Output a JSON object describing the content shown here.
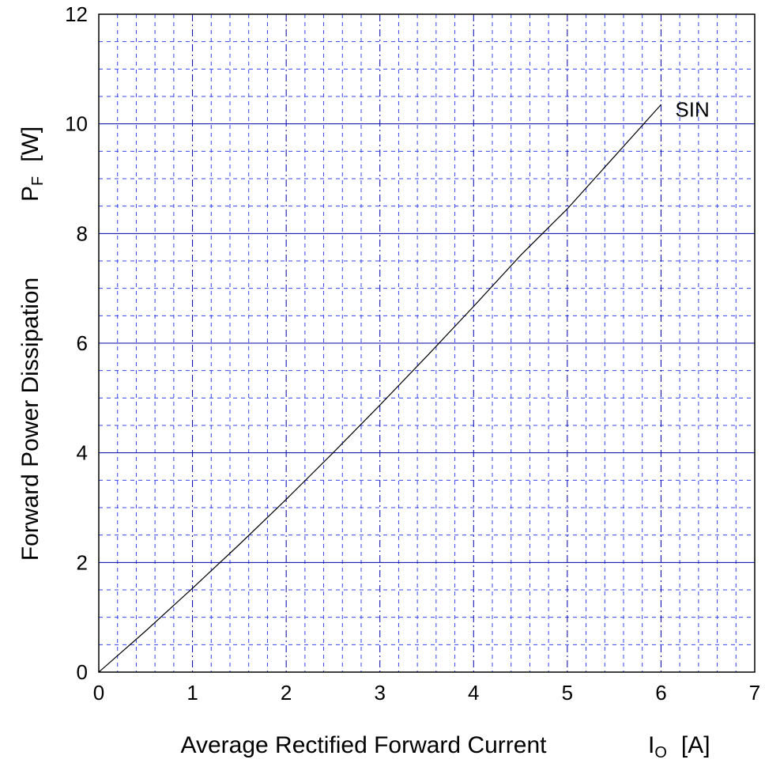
{
  "chart_data": {
    "type": "line",
    "title": "",
    "xlabel": "Average Rectified Forward Current",
    "xunit_symbol": "I",
    "xunit_sub": "O",
    "xunit": "[A]",
    "ylabel": "Forward Power Dissipation",
    "yunit_symbol": "P",
    "yunit_sub": "F",
    "yunit": "[W]",
    "xlim": [
      0,
      7
    ],
    "ylim": [
      0,
      12
    ],
    "x_ticks": [
      "0",
      "1",
      "2",
      "3",
      "4",
      "5",
      "6",
      "7"
    ],
    "y_ticks": [
      "0",
      "2",
      "4",
      "6",
      "8",
      "10",
      "12"
    ],
    "grid": true,
    "series": [
      {
        "name": "SIN",
        "x": [
          0,
          0.5,
          1,
          1.5,
          2,
          2.5,
          3,
          3.5,
          4,
          4.5,
          5,
          5.5,
          6
        ],
        "y": [
          0,
          0.75,
          1.53,
          2.33,
          3.15,
          4.0,
          4.87,
          5.76,
          6.67,
          7.6,
          8.45,
          9.4,
          10.35
        ]
      }
    ],
    "colors": {
      "major_grid": "#0000aa",
      "minor_grid": "#3344ee",
      "curve": "#000000",
      "frame": "#000000"
    }
  }
}
